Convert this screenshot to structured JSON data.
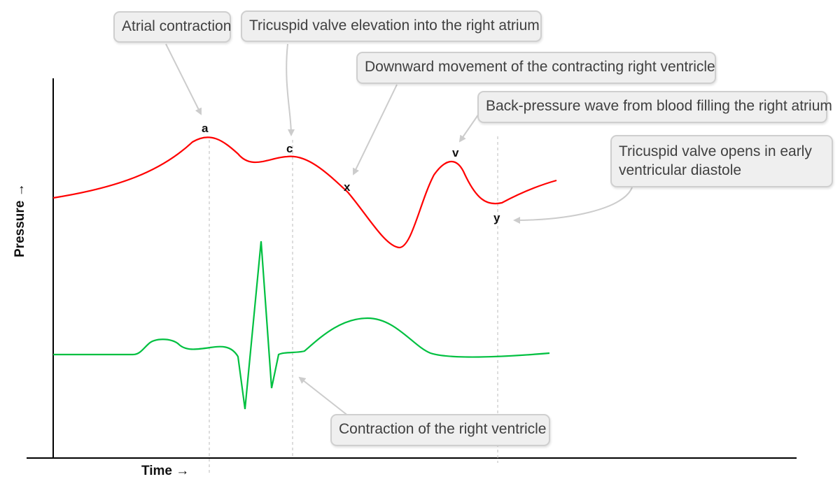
{
  "axes": {
    "x_label": "Time →",
    "y_label": "Pressure →"
  },
  "wave_labels": {
    "a": "a",
    "c": "c",
    "x": "x",
    "v": "v",
    "y": "y"
  },
  "callouts": {
    "atrial_contraction": "Atrial contraction",
    "tricuspid_elevation": "Tricuspid valve elevation into the right atrium",
    "downward_movement": "Downward movement of the contracting right ventricle",
    "back_pressure": "Back-pressure wave from blood filling  the right atrium",
    "tricuspid_opens": "Tricuspid valve opens in early ventricular diastole",
    "rv_contraction": "Contraction of the right ventricle"
  },
  "colors": {
    "jvp_trace": "#ff0000",
    "ecg_trace": "#00c040",
    "axis": "#000000",
    "guide_line": "#bbbbbb",
    "arrow": "#cccccc",
    "callout_bg": "#efefef",
    "callout_border": "#cfcfcf"
  }
}
